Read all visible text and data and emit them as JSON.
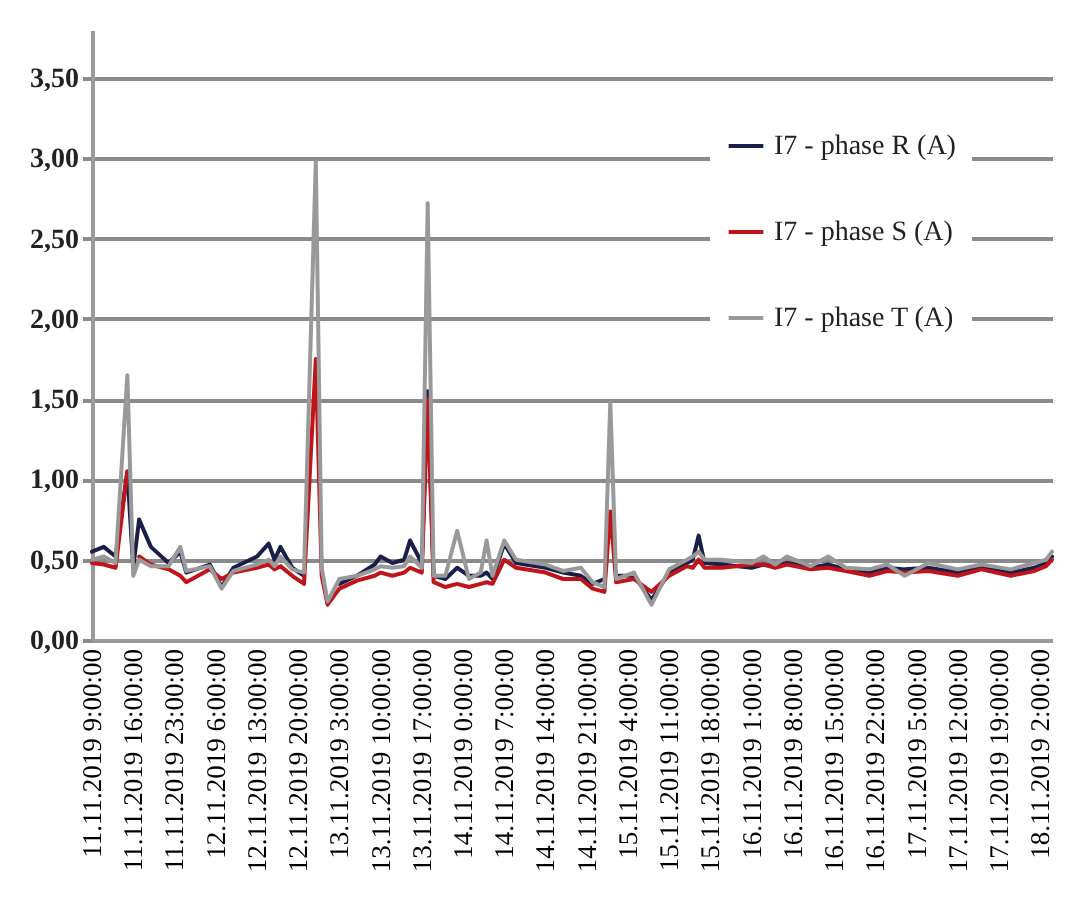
{
  "chart_data": {
    "type": "line",
    "legend": "top right",
    "grid": "y",
    "x": [
      "2019-11-11T09:00",
      "2019-11-11T11:00",
      "2019-11-11T13:00",
      "2019-11-11T15:00",
      "2019-11-11T16:00",
      "2019-11-11T17:00",
      "2019-11-11T19:00",
      "2019-11-11T22:00",
      "2019-11-12T00:00",
      "2019-11-12T01:00",
      "2019-11-12T05:00",
      "2019-11-12T07:00",
      "2019-11-12T09:00",
      "2019-11-12T13:00",
      "2019-11-12T15:00",
      "2019-11-12T16:00",
      "2019-11-12T17:00",
      "2019-11-12T19:00",
      "2019-11-12T21:00",
      "2019-11-12T23:00",
      "2019-11-13T00:00",
      "2019-11-13T01:00",
      "2019-11-13T03:00",
      "2019-11-13T06:00",
      "2019-11-13T09:00",
      "2019-11-13T10:00",
      "2019-11-13T12:00",
      "2019-11-13T14:00",
      "2019-11-13T15:00",
      "2019-11-13T17:00",
      "2019-11-13T18:00",
      "2019-11-13T19:00",
      "2019-11-13T21:00",
      "2019-11-13T23:00",
      "2019-11-14T01:00",
      "2019-11-14T03:00",
      "2019-11-14T04:00",
      "2019-11-14T05:00",
      "2019-11-14T07:00",
      "2019-11-14T09:00",
      "2019-11-14T14:00",
      "2019-11-14T17:00",
      "2019-11-14T20:00",
      "2019-11-14T22:00",
      "2019-11-15T00:00",
      "2019-11-15T01:00",
      "2019-11-15T02:00",
      "2019-11-15T05:00",
      "2019-11-15T08:00",
      "2019-11-15T11:00",
      "2019-11-15T14:00",
      "2019-11-15T15:00",
      "2019-11-15T16:00",
      "2019-11-15T17:00",
      "2019-11-15T20:00",
      "2019-11-16T01:00",
      "2019-11-16T03:00",
      "2019-11-16T05:00",
      "2019-11-16T07:00",
      "2019-11-16T11:00",
      "2019-11-16T14:00",
      "2019-11-16T17:00",
      "2019-11-16T21:00",
      "2019-11-17T00:00",
      "2019-11-17T03:00",
      "2019-11-17T07:00",
      "2019-11-17T12:00",
      "2019-11-17T16:00",
      "2019-11-17T21:00",
      "2019-11-18T01:00",
      "2019-11-18T03:00",
      "2019-11-18T04:00"
    ],
    "series": [
      {
        "name": "I7 - phase R (A)",
        "color": "#1a1f4a",
        "values": [
          0.55,
          0.58,
          0.52,
          1.05,
          0.45,
          0.75,
          0.58,
          0.48,
          0.55,
          0.42,
          0.47,
          0.33,
          0.45,
          0.52,
          0.6,
          0.5,
          0.58,
          0.45,
          0.4,
          null,
          null,
          null,
          0.35,
          0.4,
          0.47,
          0.52,
          0.48,
          0.5,
          0.62,
          0.48,
          1.55,
          0.4,
          0.38,
          0.45,
          0.4,
          0.4,
          0.42,
          0.38,
          0.6,
          0.48,
          0.45,
          0.42,
          0.4,
          0.35,
          0.38,
          null,
          0.4,
          0.4,
          0.25,
          0.42,
          0.48,
          0.5,
          0.65,
          0.48,
          0.47,
          0.45,
          0.47,
          0.46,
          0.48,
          0.45,
          0.47,
          0.44,
          0.42,
          0.45,
          0.44,
          0.45,
          0.42,
          0.45,
          0.42,
          0.45,
          0.48,
          0.52
        ]
      },
      {
        "name": "I7 - phase S (A)",
        "color": "#c0141a",
        "values": [
          0.48,
          0.47,
          0.45,
          1.05,
          null,
          0.52,
          0.47,
          0.44,
          0.4,
          0.36,
          0.44,
          0.38,
          0.42,
          0.45,
          0.47,
          0.44,
          0.46,
          0.4,
          0.35,
          1.75,
          0.4,
          0.22,
          0.32,
          0.37,
          0.4,
          0.42,
          0.4,
          0.42,
          0.45,
          0.42,
          1.5,
          0.36,
          0.33,
          0.35,
          0.33,
          0.35,
          0.36,
          0.35,
          0.5,
          0.45,
          0.42,
          0.38,
          0.38,
          0.32,
          0.3,
          0.8,
          0.36,
          0.38,
          0.3,
          0.4,
          0.46,
          0.45,
          0.5,
          0.45,
          0.45,
          0.47,
          0.47,
          0.45,
          0.47,
          0.44,
          0.45,
          0.43,
          0.4,
          0.43,
          0.42,
          0.43,
          0.4,
          0.44,
          0.4,
          0.43,
          0.46,
          0.5
        ]
      },
      {
        "name": "I7 - phase T (A)",
        "color": "#999999",
        "values": [
          0.5,
          0.52,
          0.48,
          1.65,
          0.4,
          0.5,
          0.46,
          0.46,
          0.58,
          0.43,
          0.46,
          0.32,
          0.43,
          0.47,
          0.5,
          0.46,
          0.52,
          0.44,
          0.42,
          2.98,
          0.45,
          0.24,
          0.38,
          0.4,
          0.44,
          0.46,
          0.45,
          0.46,
          0.52,
          0.45,
          2.72,
          0.4,
          0.4,
          0.68,
          0.38,
          0.42,
          0.62,
          0.4,
          0.62,
          0.5,
          0.47,
          0.43,
          0.45,
          0.36,
          0.33,
          1.48,
          0.38,
          0.42,
          0.22,
          0.44,
          0.5,
          0.52,
          0.55,
          0.5,
          0.5,
          0.48,
          0.52,
          0.47,
          0.52,
          0.46,
          0.52,
          0.45,
          0.44,
          0.47,
          0.4,
          0.48,
          0.44,
          0.47,
          0.44,
          0.48,
          0.5,
          0.55
        ]
      }
    ],
    "xlim": [
      "2019-11-11T09:00",
      "2019-11-18T04:00"
    ],
    "xticks": [
      {
        "value": "2019-11-11T09:00",
        "label": "11.11.2019 9:00:00"
      },
      {
        "value": "2019-11-11T16:00",
        "label": "11.11.2019 16:00:00"
      },
      {
        "value": "2019-11-11T23:00",
        "label": "11.11.2019 23:00:00"
      },
      {
        "value": "2019-11-12T06:00",
        "label": "12.11.2019 6:00:00"
      },
      {
        "value": "2019-11-12T13:00",
        "label": "12.11.2019 13:00:00"
      },
      {
        "value": "2019-11-12T20:00",
        "label": "12.11.2019 20:00:00"
      },
      {
        "value": "2019-11-13T03:00",
        "label": "13.11.2019 3:00:00"
      },
      {
        "value": "2019-11-13T10:00",
        "label": "13.11.2019 10:00:00"
      },
      {
        "value": "2019-11-13T17:00",
        "label": "13.11.2019 17:00:00"
      },
      {
        "value": "2019-11-14T00:00",
        "label": "14.11.2019 0:00:00"
      },
      {
        "value": "2019-11-14T07:00",
        "label": "14.11.2019 7:00:00"
      },
      {
        "value": "2019-11-14T14:00",
        "label": "14.11.2019 14:00:00"
      },
      {
        "value": "2019-11-14T21:00",
        "label": "14.11.2019 21:00:00"
      },
      {
        "value": "2019-11-15T04:00",
        "label": "15.11.2019 4:00:00"
      },
      {
        "value": "2019-11-15T11:00",
        "label": "15.11.2019 11:00:00"
      },
      {
        "value": "2019-11-15T18:00",
        "label": "15.11.2019 18:00:00"
      },
      {
        "value": "2019-11-16T01:00",
        "label": "16.11.2019 1:00:00"
      },
      {
        "value": "2019-11-16T08:00",
        "label": "16.11.2019 8:00:00"
      },
      {
        "value": "2019-11-16T15:00",
        "label": "16.11.2019 15:00:00"
      },
      {
        "value": "2019-11-16T22:00",
        "label": "16.11.2019 22:00:00"
      },
      {
        "value": "2019-11-17T05:00",
        "label": "17.11.2019 5:00:00"
      },
      {
        "value": "2019-11-17T12:00",
        "label": "17.11.2019 12:00:00"
      },
      {
        "value": "2019-11-17T19:00",
        "label": "17.11.2019 19:00:00"
      },
      {
        "value": "2019-11-18T02:00",
        "label": "18.11.2019 2:00:00"
      }
    ],
    "ylim": [
      0,
      3.8
    ],
    "yticks": [
      {
        "value": 0,
        "label": "0,00"
      },
      {
        "value": 0.5,
        "label": "0,50"
      },
      {
        "value": 1,
        "label": "1,00"
      },
      {
        "value": 1.5,
        "label": "1,50"
      },
      {
        "value": 2,
        "label": "2,00"
      },
      {
        "value": 2.5,
        "label": "2,50"
      },
      {
        "value": 3,
        "label": "3,00"
      },
      {
        "value": 3.5,
        "label": "3,50"
      }
    ]
  }
}
